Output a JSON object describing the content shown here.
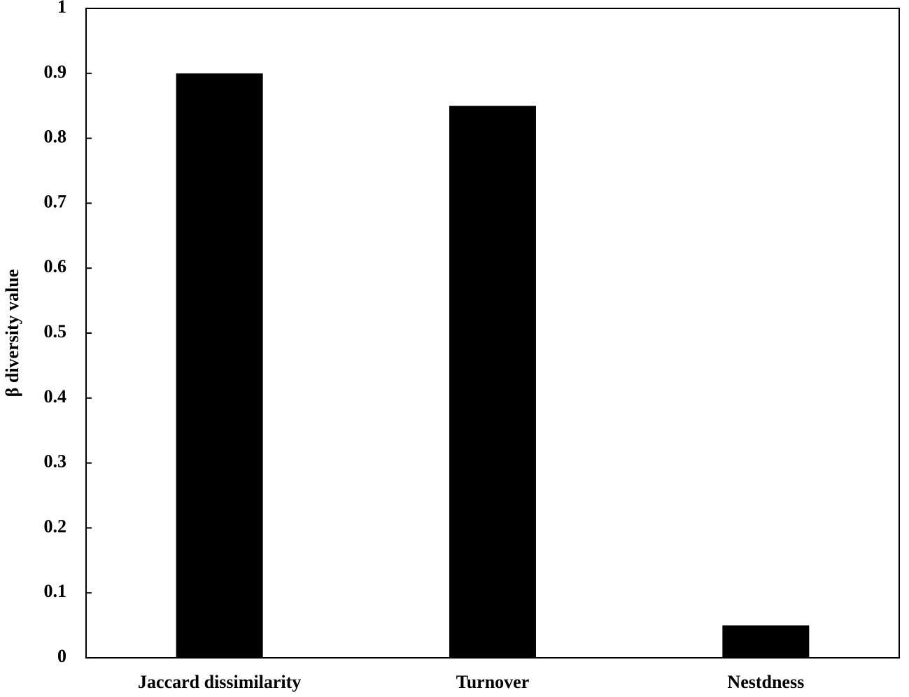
{
  "chart_data": {
    "type": "bar",
    "ylabel": "β diversity value",
    "categories": [
      "Jaccard dissimilarity",
      "Turnover",
      "Nestdness"
    ],
    "values": [
      0.9,
      0.85,
      0.05
    ],
    "color": "#000000",
    "ylim": [
      0,
      1
    ],
    "yticks": [
      0,
      0.1,
      0.2,
      0.3,
      0.4,
      0.5,
      0.6,
      0.7,
      0.8,
      0.9,
      1
    ],
    "grid": false
  }
}
